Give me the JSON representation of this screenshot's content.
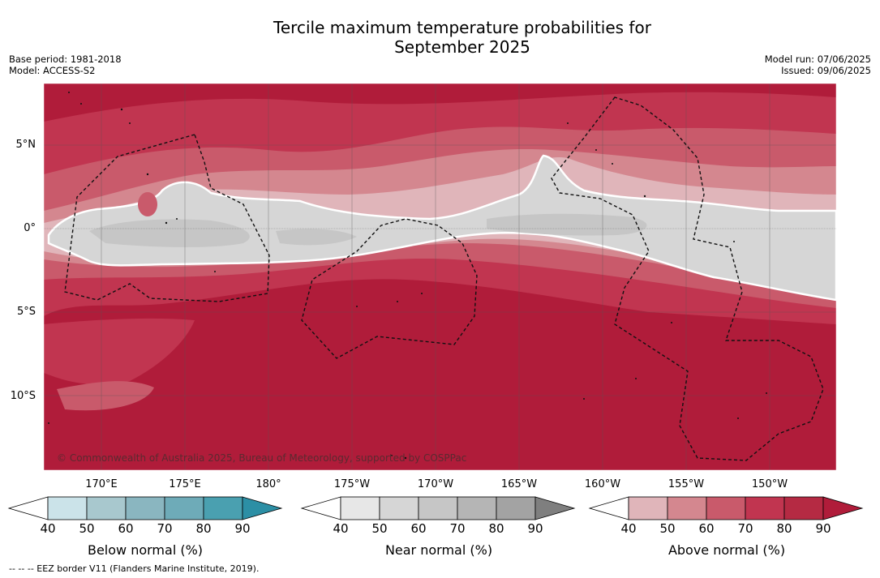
{
  "title": {
    "line1": "Tercile maximum temperature probabilities for",
    "line2": "September 2025"
  },
  "meta": {
    "base_period": "Base period: 1981-2018",
    "model": "Model: ACCESS-S2",
    "model_run": "Model run: 07/06/2025",
    "issued": "Issued: 09/06/2025"
  },
  "map": {
    "longitude_ticks": [
      "170°E",
      "175°E",
      "180°",
      "175°W",
      "170°W",
      "165°W",
      "160°W",
      "155°W",
      "150°W"
    ],
    "latitude_ticks": [
      "5°N",
      "0°",
      "5°S",
      "10°S"
    ],
    "copyright": "© Commonwealth of Australia 2025, Bureau of Meteorology, supported by COSPPac",
    "colors": {
      "ocean_deep_red": "#b01c3a",
      "red_80": "#c13550",
      "red_70": "#c95a6b",
      "red_60": "#d4878f",
      "red_50": "#e0b5ba",
      "near_normal_50": "#d6d6d6",
      "near_normal_60": "#c6c6c6"
    }
  },
  "colorbars": [
    {
      "label": "Below normal (%)",
      "ticks": [
        "40",
        "50",
        "60",
        "70",
        "80",
        "90"
      ],
      "colors": [
        "#ffffff",
        "#cbe3e9",
        "#a8c8ce",
        "#8ab6c0",
        "#6eabb8",
        "#4aa0b0",
        "#2c8fa5"
      ]
    },
    {
      "label": "Near normal (%)",
      "ticks": [
        "40",
        "50",
        "60",
        "70",
        "80",
        "90"
      ],
      "colors": [
        "#ffffff",
        "#e7e7e7",
        "#d6d6d6",
        "#c6c6c6",
        "#b5b5b5",
        "#a3a3a3",
        "#7f7f7f"
      ]
    },
    {
      "label": "Above normal (%)",
      "ticks": [
        "40",
        "50",
        "60",
        "70",
        "80",
        "90"
      ],
      "colors": [
        "#ffffff",
        "#e0b5ba",
        "#d4878f",
        "#c95a6b",
        "#c13550",
        "#b52a43",
        "#b01c3a"
      ]
    }
  ],
  "footer": "--  --  -- EEZ border V11 (Flanders Marine Institute, 2019)."
}
